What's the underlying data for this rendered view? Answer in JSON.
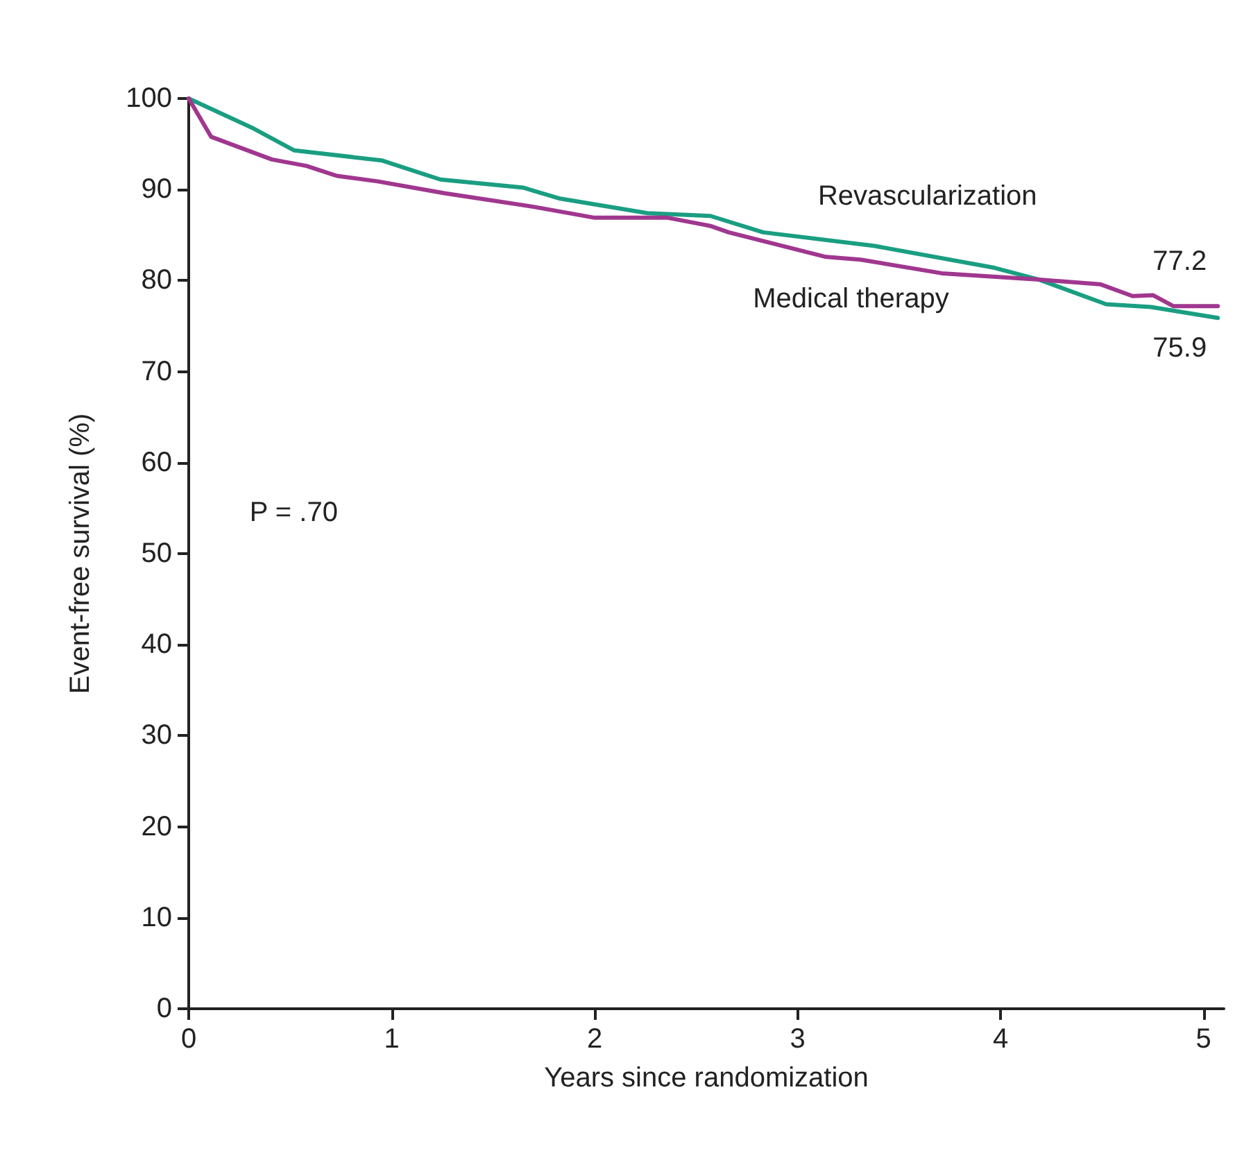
{
  "chart_data": {
    "type": "line",
    "xlabel": "Years since randomization",
    "ylabel": "Event-free survival (%)",
    "xlim": [
      0,
      5.1
    ],
    "xticks": [
      0,
      1,
      2,
      3,
      4,
      5
    ],
    "ylim": [
      0,
      100
    ],
    "yticks": [
      0,
      10,
      20,
      30,
      40,
      50,
      60,
      70,
      80,
      90,
      100
    ],
    "grid": false,
    "legend": false,
    "marker": "none",
    "line_style": "solid",
    "series": [
      {
        "name": "Revascularization",
        "color": "#1a9e82",
        "x": [
          0,
          0.32,
          0.52,
          0.95,
          1.24,
          1.65,
          1.83,
          2.26,
          2.57,
          2.83,
          3.38,
          3.97,
          4.19,
          4.52,
          4.74,
          5.07
        ],
        "values": [
          100,
          96.7,
          94.3,
          93.2,
          91.1,
          90.2,
          89,
          87.4,
          87.1,
          85.3,
          83.8,
          81.4,
          80.1,
          77.4,
          77.1,
          75.9
        ]
      },
      {
        "name": "Medical therapy",
        "color": "#a0378f",
        "x": [
          0,
          0.11,
          0.41,
          0.58,
          0.73,
          0.93,
          1.26,
          1.7,
          2.0,
          2.36,
          2.57,
          2.66,
          3.14,
          3.31,
          3.71,
          4.19,
          4.49,
          4.65,
          4.75,
          4.85,
          5.07
        ],
        "values": [
          100,
          95.8,
          93.3,
          92.6,
          91.5,
          90.9,
          89.6,
          88.1,
          86.9,
          86.9,
          86,
          85.3,
          82.6,
          82.3,
          80.8,
          80.1,
          79.6,
          78.3,
          78.4,
          77.2,
          77.2
        ]
      }
    ],
    "annotations": [
      "P = .70",
      {
        "text": "77.2",
        "x": 5.07,
        "y": 77.2
      },
      {
        "text": "75.9",
        "x": 5.07,
        "y": 75.9
      }
    ]
  }
}
